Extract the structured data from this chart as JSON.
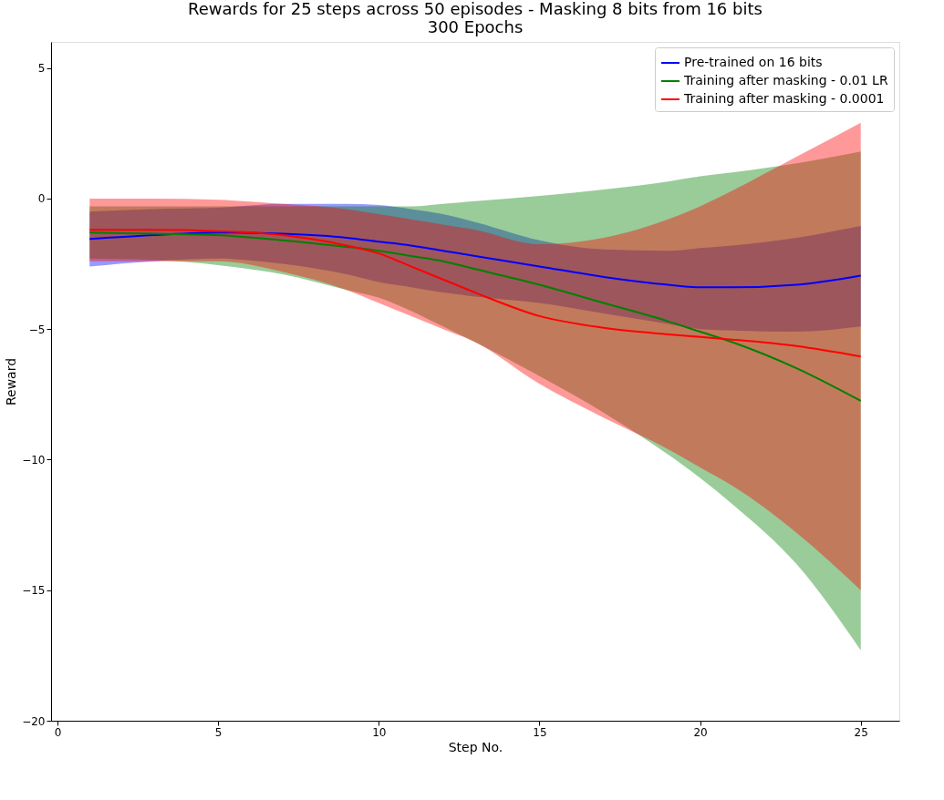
{
  "chart_data": {
    "type": "line",
    "title": "Rewards for 25 steps across 50 episodes - Masking 8 bits from 16 bits\n300 Epochs",
    "xlabel": "Step No.",
    "ylabel": "Reward",
    "xlim": [
      -0.2,
      26.2
    ],
    "ylim": [
      -20,
      6
    ],
    "xticks": [
      0,
      5,
      10,
      15,
      20,
      25
    ],
    "yticks": [
      -20,
      -15,
      -10,
      -5,
      0,
      5
    ],
    "grid": false,
    "legend": "top right",
    "line_style": "solid",
    "marker": "none",
    "series": [
      {
        "name": "Pre-trained on 16 bits",
        "color": "#0000ff",
        "x": [
          1,
          3,
          5,
          7,
          9,
          10,
          11,
          12,
          13,
          15,
          17,
          19,
          20,
          21,
          23,
          25
        ],
        "values": [
          -1.55,
          -1.4,
          -1.3,
          -1.35,
          -1.5,
          -1.65,
          -1.8,
          -2.0,
          -2.2,
          -2.6,
          -3.0,
          -3.3,
          -3.4,
          -3.4,
          -3.3,
          -2.95
        ],
        "lower": [
          -2.6,
          -2.4,
          -2.3,
          -2.5,
          -2.9,
          -3.2,
          -3.4,
          -3.6,
          -3.75,
          -4.0,
          -4.4,
          -4.8,
          -5.0,
          -5.05,
          -5.1,
          -4.9
        ],
        "upper": [
          -0.5,
          -0.4,
          -0.35,
          -0.2,
          -0.2,
          -0.25,
          -0.4,
          -0.6,
          -0.9,
          -1.6,
          -1.95,
          -2.0,
          -1.9,
          -1.8,
          -1.5,
          -1.05
        ]
      },
      {
        "name": "Training after masking - 0.01 LR",
        "color": "#008000",
        "x": [
          1,
          3,
          5,
          7,
          9,
          10,
          11,
          12,
          13,
          15,
          17,
          19,
          20,
          21,
          23,
          25
        ],
        "values": [
          -1.3,
          -1.35,
          -1.4,
          -1.6,
          -1.85,
          -2.0,
          -2.2,
          -2.4,
          -2.7,
          -3.3,
          -4.0,
          -4.7,
          -5.1,
          -5.5,
          -6.5,
          -7.75
        ],
        "lower": [
          -2.3,
          -2.35,
          -2.55,
          -2.9,
          -3.5,
          -3.8,
          -4.3,
          -4.9,
          -5.5,
          -6.8,
          -8.2,
          -9.8,
          -10.7,
          -11.7,
          -14.0,
          -17.3
        ],
        "upper": [
          -0.3,
          -0.3,
          -0.3,
          -0.3,
          -0.3,
          -0.3,
          -0.3,
          -0.2,
          -0.1,
          0.1,
          0.35,
          0.65,
          0.85,
          1.0,
          1.35,
          1.8
        ]
      },
      {
        "name": "Training after masking - 0.0001",
        "color": "#ff0000",
        "x": [
          1,
          3,
          5,
          7,
          9,
          10,
          11,
          12,
          13,
          15,
          17,
          19,
          20,
          21,
          23,
          25
        ],
        "values": [
          -1.2,
          -1.2,
          -1.25,
          -1.4,
          -1.8,
          -2.1,
          -2.6,
          -3.1,
          -3.6,
          -4.5,
          -4.95,
          -5.2,
          -5.3,
          -5.4,
          -5.65,
          -6.05
        ],
        "lower": [
          -2.4,
          -2.4,
          -2.4,
          -2.8,
          -3.5,
          -4.0,
          -4.5,
          -5.0,
          -5.5,
          -7.1,
          -8.4,
          -9.6,
          -10.3,
          -11.0,
          -12.8,
          -15.0
        ],
        "upper": [
          0.0,
          0.0,
          -0.05,
          -0.2,
          -0.4,
          -0.6,
          -0.8,
          -1.0,
          -1.2,
          -1.75,
          -1.5,
          -0.8,
          -0.3,
          0.3,
          1.6,
          2.9
        ]
      }
    ]
  }
}
